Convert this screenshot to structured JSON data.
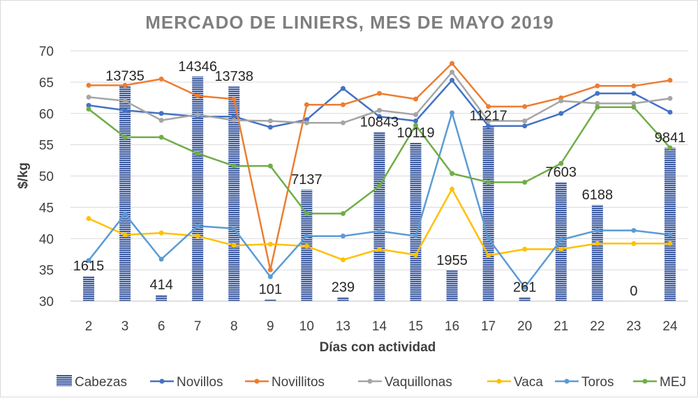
{
  "chart_data": {
    "type": "bar",
    "title": "MERCADO DE LINIERS, MES DE MAYO 2019",
    "xlabel": "Días con actividad",
    "ylabel": "$/kg",
    "ylim": [
      30,
      70
    ],
    "ytick_step": 5,
    "grid": true,
    "legend_position": "bottom",
    "categories": [
      "2",
      "3",
      "6",
      "7",
      "8",
      "9",
      "10",
      "13",
      "14",
      "15",
      "16",
      "17",
      "20",
      "21",
      "22",
      "23",
      "24"
    ],
    "series": [
      {
        "name": "Cabezas",
        "type": "bar",
        "color": "#3d5a9e",
        "plotted_values": [
          34,
          64.4,
          31,
          65.9,
          64.3,
          30.3,
          47.8,
          30.6,
          57,
          55.3,
          34.9,
          58,
          30.6,
          49,
          45.4,
          30,
          54.5
        ],
        "data_labels": [
          "1615",
          "13735",
          "414",
          "14346",
          "13738",
          "101",
          "7137",
          "239",
          "10843",
          "10119",
          "1955",
          "11217",
          "261",
          "7603",
          "6188",
          "0",
          "9841"
        ]
      },
      {
        "name": "Novillos",
        "type": "line",
        "color": "#4472c4",
        "values": [
          61.3,
          60.5,
          60,
          59.5,
          59.5,
          57.8,
          59,
          64,
          59.5,
          58.8,
          65.3,
          58,
          58,
          60,
          63.2,
          63.2,
          60.2
        ]
      },
      {
        "name": "Novillitos",
        "type": "line",
        "color": "#ed7d31",
        "values": [
          64.5,
          64.5,
          65.5,
          62.8,
          62.3,
          35,
          61.4,
          61.4,
          63.2,
          62.3,
          68,
          61.1,
          61.1,
          62.5,
          64.4,
          64.4,
          65.3
        ]
      },
      {
        "name": "Vaquillonas",
        "type": "line",
        "color": "#a5a5a5",
        "values": [
          62.6,
          62,
          58.9,
          59.8,
          58.9,
          58.8,
          58.5,
          58.5,
          60.5,
          59.8,
          66.6,
          58.8,
          58.8,
          62,
          61.6,
          61.6,
          62.4
        ]
      },
      {
        "name": "Vaca",
        "type": "line",
        "color": "#ffc000",
        "values": [
          43.2,
          40.6,
          40.9,
          40.4,
          38.9,
          39.1,
          38.8,
          36.6,
          38.3,
          37.4,
          47.9,
          37.3,
          38.3,
          38.3,
          39.2,
          39.2,
          39.2
        ]
      },
      {
        "name": "Toros",
        "type": "line",
        "color": "#5b9bd5",
        "values": [
          36.5,
          43.9,
          36.7,
          42,
          41.6,
          33.9,
          40.4,
          40.4,
          41.2,
          40.4,
          60.1,
          40,
          32.2,
          39.8,
          41.3,
          41.3,
          40.6
        ]
      },
      {
        "name": "MEJ",
        "type": "line",
        "color": "#70ad47",
        "values": [
          60.7,
          56.2,
          56.2,
          53.6,
          51.6,
          51.6,
          44,
          44,
          48.4,
          58.1,
          50.4,
          49,
          49,
          52,
          61,
          61,
          54.5
        ]
      }
    ]
  }
}
